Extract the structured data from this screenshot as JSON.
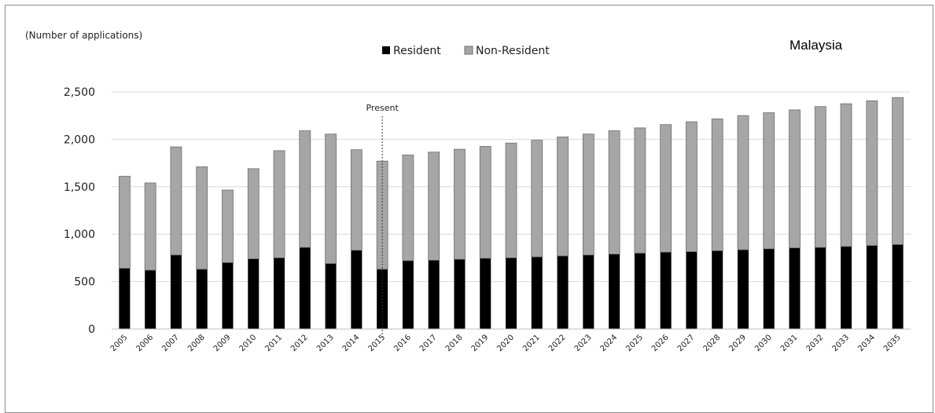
{
  "chart_data": {
    "type": "bar",
    "stacked": true,
    "title": "Malaysia",
    "ylabel": "(Number of applications)",
    "xlabel": "",
    "ylim": [
      0,
      2500
    ],
    "yticks": [
      0,
      500,
      1000,
      1500,
      2000,
      2500
    ],
    "ytick_labels": [
      "0",
      "500",
      "1,000",
      "1,500",
      "2,000",
      "2,500"
    ],
    "grid": true,
    "legend_position": "top-center",
    "annotation": {
      "text": "Present",
      "x": "2015"
    },
    "categories": [
      "2005",
      "2006",
      "2007",
      "2008",
      "2009",
      "2010",
      "2011",
      "2012",
      "2013",
      "2014",
      "2015",
      "2016",
      "2017",
      "2018",
      "2019",
      "2020",
      "2021",
      "2022",
      "2023",
      "2024",
      "2025",
      "2026",
      "2027",
      "2028",
      "2029",
      "2030",
      "2031",
      "2032",
      "2033",
      "2034",
      "2035"
    ],
    "series": [
      {
        "name": "Resident",
        "color": "#000000",
        "values": [
          640,
          620,
          780,
          630,
          700,
          740,
          750,
          860,
          690,
          830,
          630,
          720,
          725,
          735,
          745,
          750,
          760,
          770,
          780,
          790,
          800,
          810,
          815,
          825,
          835,
          845,
          855,
          860,
          870,
          880,
          890
        ]
      },
      {
        "name": "Non-Resident",
        "color": "#a6a6a6",
        "values": [
          970,
          920,
          1140,
          1080,
          765,
          950,
          1130,
          1230,
          1365,
          1060,
          1140,
          1115,
          1140,
          1160,
          1180,
          1210,
          1230,
          1255,
          1275,
          1300,
          1320,
          1345,
          1370,
          1390,
          1415,
          1435,
          1455,
          1485,
          1505,
          1525,
          1550
        ]
      }
    ]
  }
}
